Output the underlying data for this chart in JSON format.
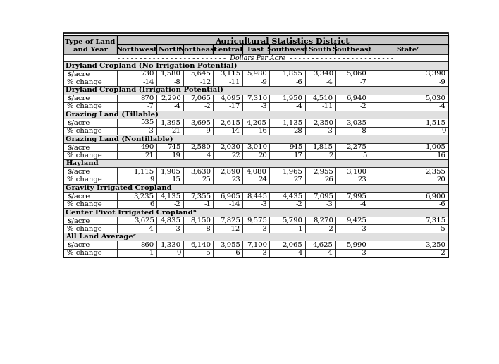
{
  "col_header_row2": [
    "Northwest",
    "North",
    "Northeast",
    "Central",
    "East",
    "Southwest",
    "South",
    "Southeast",
    "Stateᶜ"
  ],
  "sections": [
    {
      "header": "Dryland Cropland (No Irrigation Potential)",
      "rows": [
        [
          "$/acre",
          "730",
          "1,580",
          "5,645",
          "3,115",
          "5,980",
          "1,855",
          "3,340",
          "5,060",
          "3,390"
        ],
        [
          "% change",
          "-14",
          "-8",
          "-12",
          "-11",
          "-9",
          "-6",
          "-4",
          "-7",
          "-9"
        ]
      ]
    },
    {
      "header": "Dryland Cropland (Irrigation Potential)",
      "rows": [
        [
          "$/acre",
          "870",
          "2,290",
          "7,065",
          "4,095",
          "7,310",
          "1,950",
          "4,510",
          "6,940",
          "5,030"
        ],
        [
          "% change",
          "-7",
          "-4",
          "-2",
          "-17",
          "-3",
          "-4",
          "-11",
          "-2",
          "-4"
        ]
      ]
    },
    {
      "header": "Grazing Land (Tillable)",
      "rows": [
        [
          "$/acre",
          "535",
          "1,395",
          "3,695",
          "2,615",
          "4,205",
          "1,135",
          "2,350",
          "3,035",
          "1,515"
        ],
        [
          "% change",
          "-3",
          "21",
          "-9",
          "14",
          "16",
          "28",
          "-3",
          "-8",
          "9"
        ]
      ]
    },
    {
      "header": "Grazing Land (Nontillable)",
      "rows": [
        [
          "$/acre",
          "490",
          "745",
          "2,580",
          "2,030",
          "3,010",
          "945",
          "1,815",
          "2,275",
          "1,005"
        ],
        [
          "% change",
          "21",
          "19",
          "4",
          "22",
          "20",
          "17",
          "2",
          "5",
          "16"
        ]
      ]
    },
    {
      "header": "Hayland",
      "rows": [
        [
          "$/acre",
          "1,115",
          "1,905",
          "3,630",
          "2,890",
          "4,080",
          "1,965",
          "2,955",
          "3,100",
          "2,355"
        ],
        [
          "% change",
          "9",
          "15",
          "25",
          "23",
          "24",
          "27",
          "26",
          "23",
          "20"
        ]
      ]
    },
    {
      "header": "Gravity Irrigated Cropland",
      "rows": [
        [
          "$/acre",
          "3,235",
          "4,135",
          "7,355",
          "6,905",
          "8,445",
          "4,435",
          "7,095",
          "7,995",
          "6,900"
        ],
        [
          "% change",
          "6",
          "-2",
          "-1",
          "-14",
          "-3",
          "-2",
          "-3",
          "-4",
          "-6"
        ]
      ]
    },
    {
      "header": "Center Pivot Irrigated Croplandᵇ",
      "rows": [
        [
          "$/acre",
          "3,625",
          "4,835",
          "8,150",
          "7,825",
          "9,575",
          "5,790",
          "8,270",
          "9,425",
          "7,315"
        ],
        [
          "% change",
          "-4",
          "-3",
          "-8",
          "-12",
          "-3",
          "1",
          "-2",
          "-3",
          "-5"
        ]
      ]
    },
    {
      "header": "All Land Averageᶜ",
      "rows": [
        [
          "$/acre",
          "860",
          "1,330",
          "6,140",
          "3,955",
          "7,100",
          "2,065",
          "4,625",
          "5,990",
          "3,250"
        ],
        [
          "% change",
          "1",
          "9",
          "-5",
          "-6",
          "-3",
          "4",
          "-4",
          "-3",
          "-2"
        ]
      ]
    }
  ],
  "header_bg": "#c8c8c8",
  "section_header_bg": "#e0e0e0",
  "white_bg": "#ffffff",
  "border_color": "#000000"
}
